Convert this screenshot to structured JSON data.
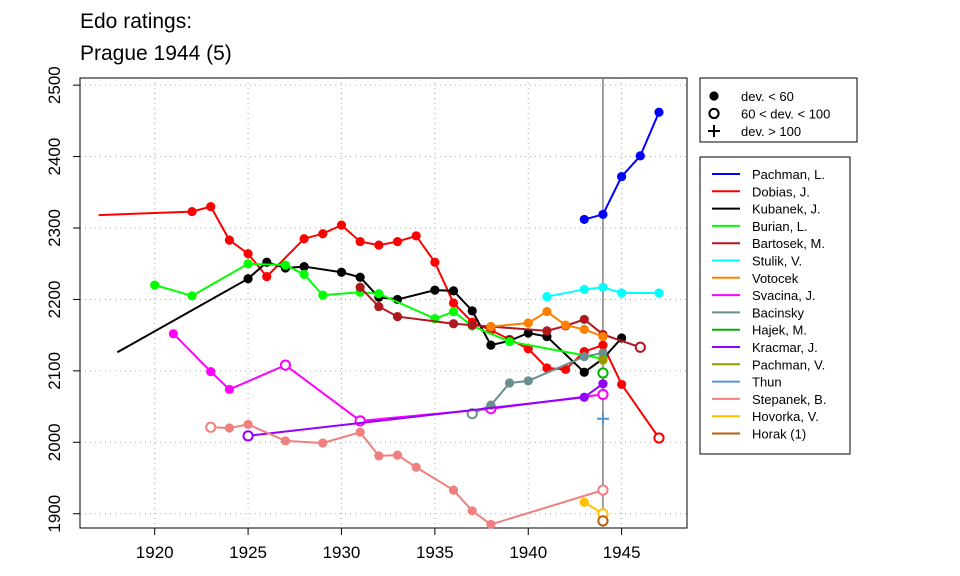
{
  "chart_data": {
    "type": "line",
    "title_lines": [
      "Edo ratings:",
      "Prague 1944 (5)"
    ],
    "xlabel": "",
    "ylabel": "",
    "xlim": [
      1916,
      1948.5
    ],
    "ylim": [
      1880,
      2510
    ],
    "x_ticks": [
      1920,
      1925,
      1930,
      1935,
      1940,
      1945
    ],
    "y_ticks": [
      1900,
      2000,
      2100,
      2200,
      2300,
      2400,
      2500
    ],
    "grid": true,
    "vline_x": 1944,
    "marker_legend": {
      "placement": "top-right",
      "items": [
        {
          "symbol": "filled-circle",
          "label": "dev. < 60"
        },
        {
          "symbol": "open-circle",
          "label": "60 < dev. < 100"
        },
        {
          "symbol": "plus",
          "label": "dev. > 100"
        }
      ]
    },
    "series_legend_placement": "right",
    "series": [
      {
        "name": "Pachman, L.",
        "color": "#0000ff",
        "points": [
          [
            1943,
            2312,
            "f"
          ],
          [
            1944,
            2319,
            "f"
          ],
          [
            1945,
            2372,
            "f"
          ],
          [
            1946,
            2401,
            "f"
          ],
          [
            1947,
            2462,
            "f"
          ]
        ]
      },
      {
        "name": "Dobias, J.",
        "color": "#ff0000",
        "points": [
          [
            1917,
            2318,
            "n"
          ],
          [
            1922,
            2323,
            "f"
          ],
          [
            1923,
            2330,
            "f"
          ],
          [
            1924,
            2283,
            "f"
          ],
          [
            1925,
            2264,
            "f"
          ],
          [
            1926,
            2232,
            "f"
          ],
          [
            1928,
            2285,
            "f"
          ],
          [
            1929,
            2292,
            "f"
          ],
          [
            1930,
            2304,
            "f"
          ],
          [
            1931,
            2281,
            "f"
          ],
          [
            1932,
            2276,
            "f"
          ],
          [
            1933,
            2281,
            "f"
          ],
          [
            1934,
            2289,
            "f"
          ],
          [
            1935,
            2252,
            "f"
          ],
          [
            1936,
            2195,
            "f"
          ],
          [
            1937,
            2168,
            "f"
          ],
          [
            1938,
            2157,
            "f"
          ],
          [
            1939,
            2144,
            "f"
          ],
          [
            1940,
            2131,
            "f"
          ],
          [
            1941,
            2104,
            "f"
          ],
          [
            1942,
            2102,
            "f"
          ],
          [
            1943,
            2127,
            "f"
          ],
          [
            1944,
            2136,
            "f"
          ],
          [
            1945,
            2081,
            "f"
          ],
          [
            1947,
            2006,
            "o"
          ]
        ]
      },
      {
        "name": "Kubanek, J.",
        "color": "#000000",
        "points": [
          [
            1918,
            2126,
            "n"
          ],
          [
            1925,
            2229,
            "f"
          ],
          [
            1926,
            2252,
            "f"
          ],
          [
            1927,
            2244,
            "f"
          ],
          [
            1928,
            2246,
            "f"
          ],
          [
            1930,
            2238,
            "f"
          ],
          [
            1931,
            2231,
            "f"
          ],
          [
            1932,
            2203,
            "f"
          ],
          [
            1933,
            2200,
            "f"
          ],
          [
            1935,
            2213,
            "f"
          ],
          [
            1936,
            2212,
            "f"
          ],
          [
            1937,
            2184,
            "f"
          ],
          [
            1938,
            2136,
            "f"
          ],
          [
            1939,
            2142,
            "f"
          ],
          [
            1940,
            2153,
            "f"
          ],
          [
            1941,
            2148,
            "f"
          ],
          [
            1943,
            2098,
            "f"
          ],
          [
            1944,
            2117,
            "f"
          ],
          [
            1945,
            2146,
            "f"
          ]
        ]
      },
      {
        "name": "Burian, L.",
        "color": "#00ff00",
        "points": [
          [
            1920,
            2220,
            "f"
          ],
          [
            1922,
            2205,
            "f"
          ],
          [
            1925,
            2250,
            "f"
          ],
          [
            1927,
            2248,
            "f"
          ],
          [
            1928,
            2235,
            "f"
          ],
          [
            1929,
            2206,
            "f"
          ],
          [
            1931,
            2210,
            "f"
          ],
          [
            1932,
            2208,
            "f"
          ],
          [
            1935,
            2173,
            "f"
          ],
          [
            1936,
            2183,
            "f"
          ],
          [
            1937,
            2163,
            "f"
          ],
          [
            1939,
            2141,
            "f"
          ],
          [
            1944,
            2117,
            "f"
          ]
        ]
      },
      {
        "name": "Bartosek, M.",
        "color": "#b0171f",
        "points": [
          [
            1931,
            2217,
            "f"
          ],
          [
            1932,
            2190,
            "f"
          ],
          [
            1933,
            2176,
            "f"
          ],
          [
            1936,
            2166,
            "f"
          ],
          [
            1937,
            2164,
            "f"
          ],
          [
            1938,
            2162,
            "f"
          ],
          [
            1941,
            2156,
            "f"
          ],
          [
            1942,
            2163,
            "f"
          ],
          [
            1943,
            2172,
            "f"
          ],
          [
            1944,
            2151,
            "f"
          ],
          [
            1946,
            2133,
            "o"
          ]
        ]
      },
      {
        "name": "Stulik, V.",
        "color": "#00ffff",
        "points": [
          [
            1941,
            2204,
            "f"
          ],
          [
            1943,
            2214,
            "f"
          ],
          [
            1944,
            2217,
            "f"
          ],
          [
            1945,
            2209,
            "f"
          ],
          [
            1947,
            2209,
            "f"
          ]
        ]
      },
      {
        "name": "Votocek",
        "color": "#ff7f00",
        "points": [
          [
            1938,
            2162,
            "f"
          ],
          [
            1940,
            2167,
            "f"
          ],
          [
            1941,
            2183,
            "f"
          ],
          [
            1942,
            2164,
            "f"
          ],
          [
            1943,
            2158,
            "f"
          ],
          [
            1944,
            2148,
            "f"
          ]
        ]
      },
      {
        "name": "Svacina, J.",
        "color": "#ff00ff",
        "points": [
          [
            1921,
            2152,
            "f"
          ],
          [
            1923,
            2099,
            "f"
          ],
          [
            1924,
            2074,
            "f"
          ],
          [
            1927,
            2108,
            "o"
          ],
          [
            1931,
            2030,
            "o"
          ],
          [
            1938,
            2047,
            "o"
          ],
          [
            1944,
            2067,
            "o"
          ]
        ]
      },
      {
        "name": "Bacinsky",
        "color": "#6b8e8e",
        "points": [
          [
            1937,
            2040,
            "o"
          ],
          [
            1938,
            2052,
            "f"
          ],
          [
            1939,
            2083,
            "f"
          ],
          [
            1940,
            2086,
            "f"
          ],
          [
            1943,
            2120,
            "f"
          ],
          [
            1944,
            2125,
            "f"
          ]
        ]
      },
      {
        "name": "Hajek, M.",
        "color": "#00b300",
        "points": [
          [
            1944,
            2097,
            "o"
          ]
        ]
      },
      {
        "name": "Kracmar, J.",
        "color": "#9400ff",
        "points": [
          [
            1925,
            2009,
            "o"
          ],
          [
            1943,
            2063,
            "f"
          ],
          [
            1944,
            2082,
            "f"
          ]
        ]
      },
      {
        "name": "Pachman, V.",
        "color": "#999900",
        "points": [
          [
            1944,
            2115,
            "f"
          ]
        ]
      },
      {
        "name": "Thun",
        "color": "#4f94cd",
        "points": [
          [
            1944,
            2033,
            "p"
          ]
        ]
      },
      {
        "name": "Stepanek, B.",
        "color": "#f08080",
        "points": [
          [
            1923,
            2021,
            "o"
          ],
          [
            1924,
            2020,
            "f"
          ],
          [
            1925,
            2025,
            "f"
          ],
          [
            1927,
            2002,
            "f"
          ],
          [
            1929,
            1999,
            "f"
          ],
          [
            1931,
            2014,
            "f"
          ],
          [
            1932,
            1981,
            "f"
          ],
          [
            1933,
            1982,
            "f"
          ],
          [
            1934,
            1965,
            "f"
          ],
          [
            1936,
            1933,
            "f"
          ],
          [
            1937,
            1904,
            "f"
          ],
          [
            1938,
            1885,
            "f"
          ],
          [
            1944,
            1933,
            "o"
          ]
        ]
      },
      {
        "name": "Hovorka, V.",
        "color": "#ffc000",
        "points": [
          [
            1943,
            1916,
            "f"
          ],
          [
            1944,
            1900,
            "o"
          ]
        ]
      },
      {
        "name": "Horak (1)",
        "color": "#b8600b",
        "points": [
          [
            1944,
            1890,
            "o"
          ]
        ]
      }
    ]
  }
}
